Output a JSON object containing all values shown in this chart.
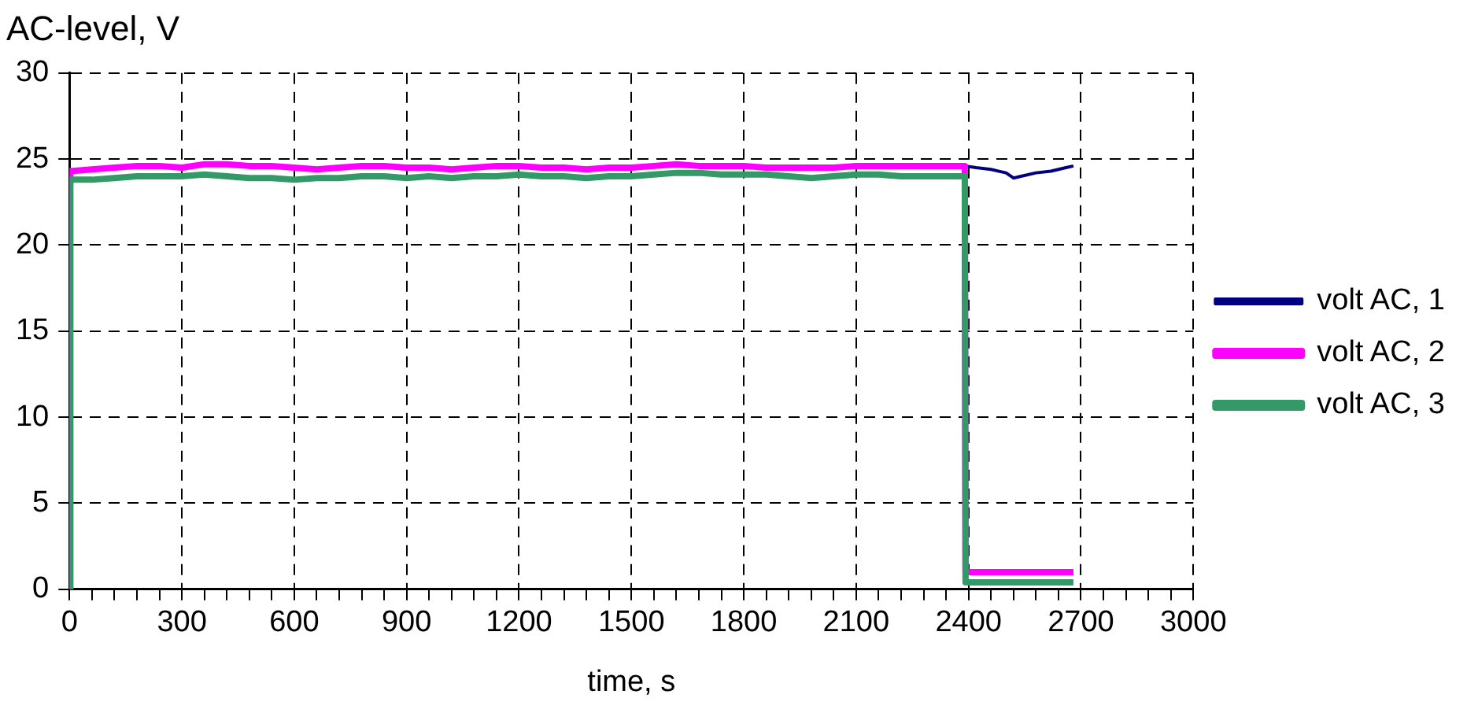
{
  "chart_data": {
    "type": "line",
    "title": "AC-level, V",
    "xlabel": "time, s",
    "xlim": [
      0,
      3000
    ],
    "xticks": [
      0,
      {
        "value": 60,
        "label": null
      },
      {
        "value": 120,
        "label": null
      },
      {
        "value": 180,
        "label": null
      },
      {
        "value": 240,
        "label": null
      },
      300,
      {
        "value": 360,
        "label": null
      },
      {
        "value": 420,
        "label": null
      },
      {
        "value": 480,
        "label": null
      },
      {
        "value": 540,
        "label": null
      },
      600,
      {
        "value": 660,
        "label": null
      },
      {
        "value": 720,
        "label": null
      },
      {
        "value": 780,
        "label": null
      },
      {
        "value": 840,
        "label": null
      },
      900,
      {
        "value": 960,
        "label": null
      },
      {
        "value": 1020,
        "label": null
      },
      {
        "value": 1080,
        "label": null
      },
      {
        "value": 1140,
        "label": null
      },
      1200,
      {
        "value": 1260,
        "label": null
      },
      {
        "value": 1320,
        "label": null
      },
      {
        "value": 1380,
        "label": null
      },
      {
        "value": 1440,
        "label": null
      },
      1500,
      {
        "value": 1560,
        "label": null
      },
      {
        "value": 1620,
        "label": null
      },
      {
        "value": 1680,
        "label": null
      },
      {
        "value": 1740,
        "label": null
      },
      1800,
      {
        "value": 1860,
        "label": null
      },
      {
        "value": 1920,
        "label": null
      },
      {
        "value": 1980,
        "label": null
      },
      {
        "value": 2040,
        "label": null
      },
      2100,
      {
        "value": 2160,
        "label": null
      },
      {
        "value": 2220,
        "label": null
      },
      {
        "value": 2280,
        "label": null
      },
      {
        "value": 2340,
        "label": null
      },
      2400,
      {
        "value": 2460,
        "label": null
      },
      {
        "value": 2520,
        "label": null
      },
      {
        "value": 2580,
        "label": null
      },
      {
        "value": 2640,
        "label": null
      },
      2700,
      {
        "value": 2760,
        "label": null
      },
      {
        "value": 2820,
        "label": null
      },
      {
        "value": 2880,
        "label": null
      },
      {
        "value": 2940,
        "label": null
      },
      3000
    ],
    "ylim": [
      0,
      30
    ],
    "yticks": [
      0,
      5,
      10,
      15,
      20,
      25,
      30
    ],
    "grid": true,
    "legend": "right",
    "marker": "none",
    "line_style": "solid",
    "series": [
      {
        "name": "volt AC, 1",
        "color": "#000080",
        "x": [
          2390,
          2420,
          2460,
          2500,
          2520,
          2540,
          2580,
          2620,
          2660,
          2680
        ],
        "values": [
          24.6,
          24.5,
          24.4,
          24.2,
          23.9,
          24.0,
          24.2,
          24.3,
          24.5,
          24.6
        ]
      },
      {
        "name": "volt AC, 2",
        "color": "#ff00ff",
        "x": [
          0,
          2,
          60,
          120,
          180,
          240,
          300,
          360,
          420,
          480,
          540,
          600,
          660,
          720,
          780,
          840,
          900,
          960,
          1020,
          1080,
          1140,
          1200,
          1260,
          1320,
          1380,
          1440,
          1500,
          1560,
          1620,
          1680,
          1740,
          1800,
          1860,
          1920,
          1980,
          2040,
          2100,
          2160,
          2220,
          2280,
          2340,
          2390,
          2392,
          2680
        ],
        "values": [
          0,
          24.3,
          24.4,
          24.5,
          24.6,
          24.6,
          24.5,
          24.7,
          24.7,
          24.6,
          24.6,
          24.5,
          24.4,
          24.5,
          24.6,
          24.6,
          24.5,
          24.5,
          24.4,
          24.5,
          24.6,
          24.6,
          24.5,
          24.5,
          24.4,
          24.5,
          24.5,
          24.6,
          24.7,
          24.6,
          24.6,
          24.6,
          24.5,
          24.5,
          24.5,
          24.5,
          24.6,
          24.6,
          24.6,
          24.6,
          24.6,
          24.6,
          1.0,
          1.0
        ]
      },
      {
        "name": "volt AC, 3",
        "color": "#339966",
        "x": [
          0,
          2,
          60,
          120,
          180,
          240,
          300,
          360,
          420,
          480,
          540,
          600,
          660,
          720,
          780,
          840,
          900,
          960,
          1020,
          1080,
          1140,
          1200,
          1260,
          1320,
          1380,
          1440,
          1500,
          1560,
          1620,
          1680,
          1740,
          1800,
          1860,
          1920,
          1980,
          2040,
          2100,
          2160,
          2220,
          2280,
          2340,
          2390,
          2392,
          2680
        ],
        "values": [
          0,
          23.8,
          23.8,
          23.9,
          24.0,
          24.0,
          24.0,
          24.1,
          24.0,
          23.9,
          23.9,
          23.8,
          23.9,
          23.9,
          24.0,
          24.0,
          23.9,
          24.0,
          23.9,
          24.0,
          24.0,
          24.1,
          24.0,
          24.0,
          23.9,
          24.0,
          24.0,
          24.1,
          24.2,
          24.2,
          24.1,
          24.1,
          24.1,
          24.0,
          23.9,
          24.0,
          24.1,
          24.1,
          24.0,
          24.0,
          24.0,
          24.0,
          0.4,
          0.4
        ]
      }
    ]
  }
}
